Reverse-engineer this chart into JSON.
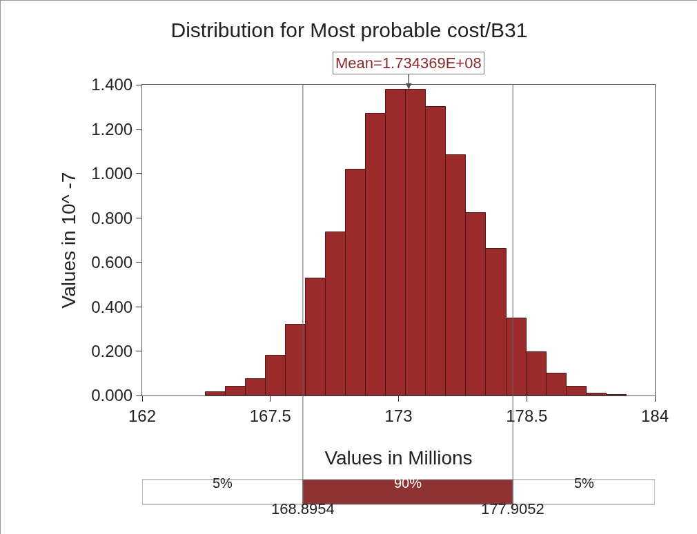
{
  "chart_data": {
    "type": "histogram",
    "title": "Distribution for Most probable cost/B31",
    "xlabel": "Values in Millions",
    "ylabel": "Values in 10^ -7",
    "bins": [
      164.72,
      165.58,
      166.44,
      167.3,
      168.16,
      169.02,
      169.88,
      170.74,
      171.6,
      172.46,
      173.32,
      174.18,
      175.04,
      175.9,
      176.76,
      177.62,
      178.48,
      179.34,
      180.2,
      181.06,
      181.92,
      182.78
    ],
    "values": [
      0.015,
      0.039,
      0.073,
      0.18,
      0.321,
      0.528,
      0.735,
      1.017,
      1.27,
      1.379,
      1.379,
      1.3,
      1.084,
      0.824,
      0.66,
      0.348,
      0.197,
      0.098,
      0.041,
      0.01,
      0.003
    ],
    "color": "#9b2a2a",
    "xlim": [
      162,
      184
    ],
    "xticks": [
      162,
      167.5,
      173,
      178.5,
      184
    ],
    "ylim": [
      0,
      1.4
    ],
    "yticks": [
      {
        "value": 0,
        "label": "0.000"
      },
      {
        "value": 0.2,
        "label": "0.200"
      },
      {
        "value": 0.4,
        "label": "0.400"
      },
      {
        "value": 0.6,
        "label": "0.600"
      },
      {
        "value": 0.8,
        "label": "0.800"
      },
      {
        "value": 1.0,
        "label": "1.000"
      },
      {
        "value": 1.2,
        "label": "1.200"
      },
      {
        "value": 1.4,
        "label": "1.400"
      }
    ],
    "grid": false,
    "ref_lines": [
      {
        "axis": "x",
        "value": 168.8954,
        "label": "168.8954",
        "color": "#666666"
      },
      {
        "axis": "x",
        "value": 177.9052,
        "label": "177.9052",
        "color": "#666666"
      }
    ],
    "annotations": [
      {
        "text": "Mean=1.734369E+08",
        "x": 173.4369,
        "y": 1.379
      },
      "5%",
      "90%",
      "5%"
    ]
  }
}
